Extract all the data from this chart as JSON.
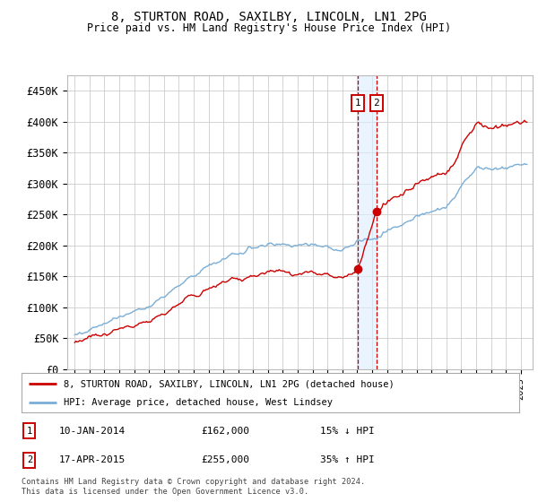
{
  "title1": "8, STURTON ROAD, SAXILBY, LINCOLN, LN1 2PG",
  "title2": "Price paid vs. HM Land Registry's House Price Index (HPI)",
  "legend_line1": "8, STURTON ROAD, SAXILBY, LINCOLN, LN1 2PG (detached house)",
  "legend_line2": "HPI: Average price, detached house, West Lindsey",
  "footnote": "Contains HM Land Registry data © Crown copyright and database right 2024.\nThis data is licensed under the Open Government Licence v3.0.",
  "transaction1_label": "1",
  "transaction1_date": "10-JAN-2014",
  "transaction1_price": "£162,000",
  "transaction1_hpi": "15% ↓ HPI",
  "transaction2_label": "2",
  "transaction2_date": "17-APR-2015",
  "transaction2_price": "£255,000",
  "transaction2_hpi": "35% ↑ HPI",
  "red_line_color": "#cc0000",
  "blue_line_color": "#7aaed6",
  "grid_color": "#cccccc",
  "background_color": "#ffffff",
  "annotation_box_color": "#cc0000",
  "shaded_region_color": "#ddeeff",
  "ylim": [
    0,
    475000
  ],
  "yticks": [
    0,
    50000,
    100000,
    150000,
    200000,
    250000,
    300000,
    350000,
    400000,
    450000
  ],
  "ytick_labels": [
    "£0",
    "£50K",
    "£100K",
    "£150K",
    "£200K",
    "£250K",
    "£300K",
    "£350K",
    "£400K",
    "£450K"
  ],
  "transaction1_x": 2014.03,
  "transaction2_x": 2015.3,
  "transaction1_y": 162000,
  "transaction2_y": 255000,
  "vline1_x": 2014.03,
  "vline2_x": 2015.3,
  "xmin": 1994.5,
  "xmax": 2025.8
}
